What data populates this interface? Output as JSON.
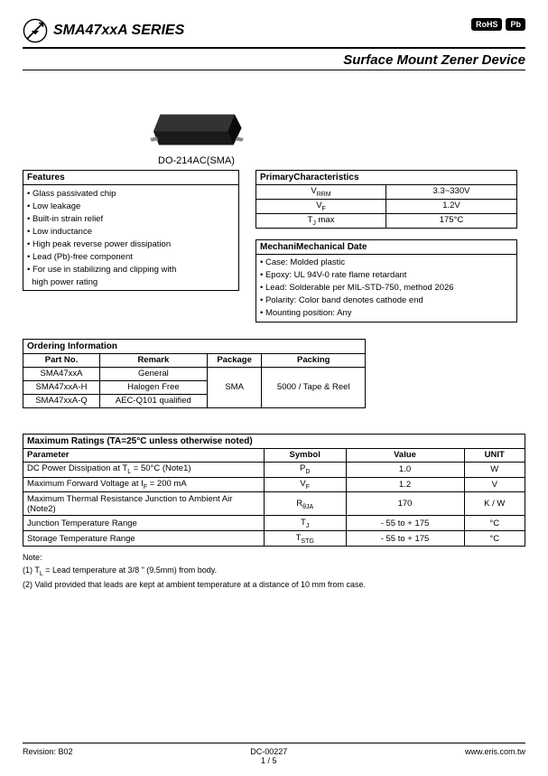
{
  "header": {
    "title": "SMA47xxA SERIES",
    "subtitle": "Surface Mount Zener Device",
    "badge1": "RoHS",
    "badge2": "Pb"
  },
  "chip_caption": "DO-214AC(SMA)",
  "features": {
    "title": "Features",
    "items": [
      "Glass passivated chip",
      "Low leakage",
      "Built-in strain relief",
      "Low inductance",
      "High peak reverse power dissipation",
      "Lead (Pb)-free component",
      "For use in stabilizing and clipping with",
      "high power rating"
    ]
  },
  "primary": {
    "title": "PrimaryCharacteristics",
    "rows": [
      {
        "k": "V<sub>RRM</sub>",
        "v": "3.3~330V"
      },
      {
        "k": "V<sub>F</sub>",
        "v": "1.2V"
      },
      {
        "k": "T<sub>J</sub> max",
        "v": "175°C"
      }
    ]
  },
  "mech": {
    "title": "Mechanical Date",
    "title_prefix": "Mechani",
    "items": [
      "Case: Molded plastic",
      "Epoxy: UL 94V-0 rate flame retardant",
      "Lead: Solderable per MIL-STD-750, method 2026",
      "Polarity: Color band denotes cathode end",
      "Mounting position: Any"
    ]
  },
  "ordering": {
    "title": "Ordering Information",
    "headers": [
      "Part No.",
      "Remark",
      "Package",
      "Packing"
    ],
    "rows": [
      [
        "SMA47xxA",
        "General"
      ],
      [
        "SMA47xxA-H",
        "Halogen Free"
      ],
      [
        "SMA47xxA-Q",
        "AEC-Q101 qualified"
      ]
    ],
    "package": "SMA",
    "packing": "5000 / Tape & Reel"
  },
  "maxratings": {
    "title": "Maximum Ratings (TA=25°C unless otherwise noted)",
    "headers": [
      "Parameter",
      "Symbol",
      "Value",
      "UNIT"
    ],
    "rows": [
      {
        "p": "DC Power Dissipation at T<sub>L</sub> = 50°C (Note1)",
        "s": "P<sub>D</sub>",
        "v": "1.0",
        "u": "W"
      },
      {
        "p": "Maximum Forward Voltage at I<sub>F</sub> = 200 mA",
        "s": "V<sub>F</sub>",
        "v": "1.2",
        "u": "V"
      },
      {
        "p": "Maximum Thermal Resistance Junction to Ambient Air (Note2)",
        "s": "R<sub>θJA</sub>",
        "v": "170",
        "u": "K / W"
      },
      {
        "p": "Junction Temperature Range",
        "s": "T<sub>J</sub>",
        "v": "- 55 to + 175",
        "u": "°C"
      },
      {
        "p": "Storage Temperature Range",
        "s": "T<sub>STG</sub>",
        "v": "- 55 to + 175",
        "u": "°C"
      }
    ]
  },
  "notes": {
    "title": "Note:",
    "n1": "(1) T<sub>L</sub> = Lead temperature at 3/8 \" (9.5mm) from body.",
    "n2": "(2) Valid provided that leads are kept at ambient temperature at a distance of 10 mm from case."
  },
  "footer": {
    "left": "Revision: B02",
    "center": "DC-00227",
    "page": "1 / 5",
    "right": "www.eris.com.tw"
  }
}
